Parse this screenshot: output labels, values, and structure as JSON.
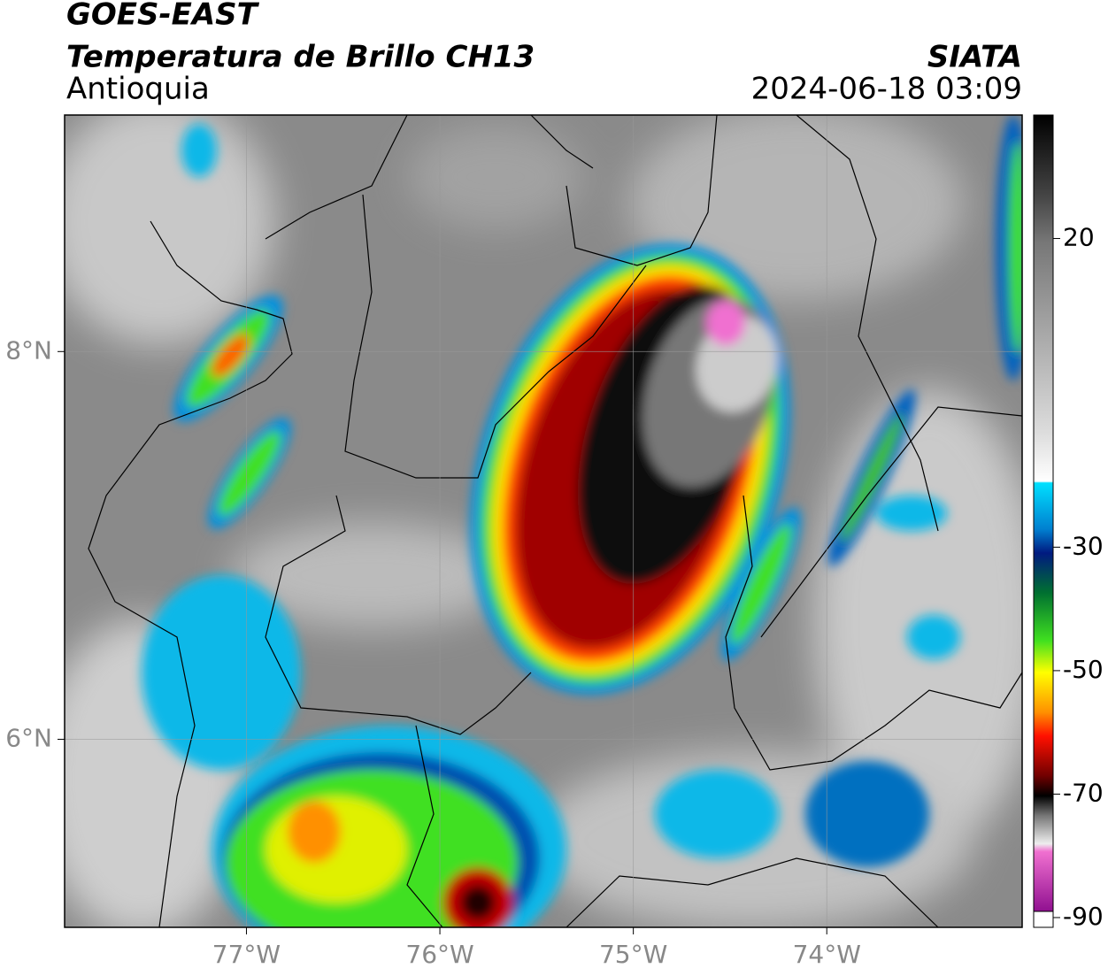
{
  "header": {
    "title": "GOES-EAST",
    "subtitle": "Temperatura de Brillo CH13",
    "region": "Antioquia",
    "source": "SIATA",
    "datetime": "2024-06-18 03:09"
  },
  "map": {
    "xlim": [
      -77.94,
      -72.99
    ],
    "ylim": [
      5.03,
      9.22
    ],
    "xticks": [
      {
        "value": -77,
        "label": "77°W"
      },
      {
        "value": -76,
        "label": "76°W"
      },
      {
        "value": -75,
        "label": "75°W"
      },
      {
        "value": -74,
        "label": "74°W"
      }
    ],
    "yticks": [
      {
        "value": 8,
        "label": "8°N"
      },
      {
        "value": 6,
        "label": "6°N"
      }
    ],
    "grid": true
  },
  "colorbar": {
    "lim": [
      -89,
      40
    ],
    "ticks": [
      20,
      -30,
      -50,
      -70,
      -90
    ]
  }
}
